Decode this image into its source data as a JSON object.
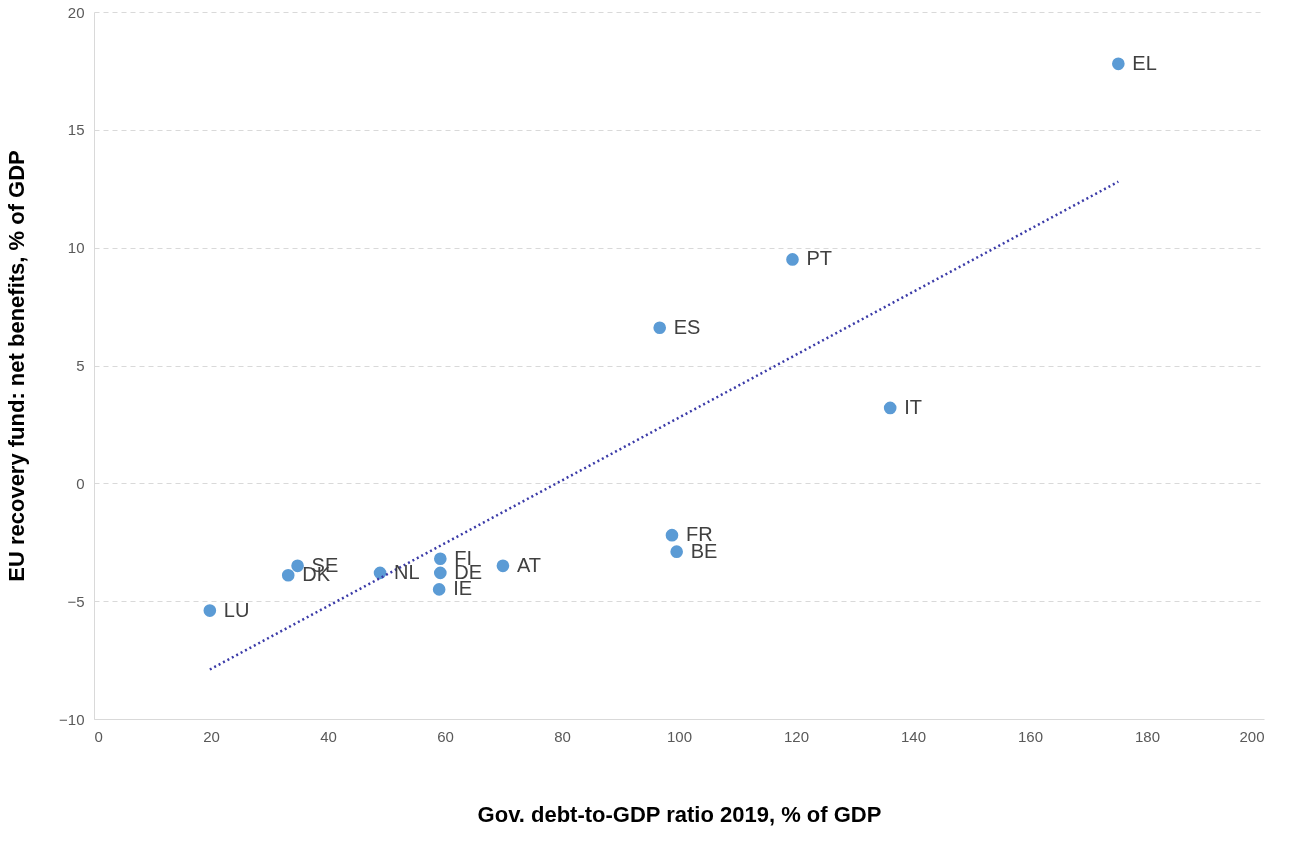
{
  "chart_data": {
    "type": "scatter",
    "xlabel": "Gov. debt-to-GDP ratio 2019, % of GDP",
    "ylabel": "EU recovery fund: net benefits, % of GDP",
    "xlim": [
      0,
      200
    ],
    "xticks": [
      0,
      20,
      40,
      60,
      80,
      100,
      120,
      140,
      160,
      180,
      200
    ],
    "ylim": [
      -10,
      20
    ],
    "yticks": [
      -10,
      -5,
      0,
      5,
      10,
      15,
      20
    ],
    "grid": "y",
    "series": [
      {
        "marker": "circle",
        "color": "#5b9bd5",
        "x": [
          175.1,
          119.4,
          96.7,
          136.1,
          98.8,
          99.6,
          69.9,
          59.2,
          59.2,
          59.0,
          48.9,
          34.8,
          33.2,
          19.8
        ],
        "values": [
          17.8,
          9.5,
          6.6,
          3.2,
          -2.2,
          -2.9,
          -3.5,
          -3.2,
          -3.8,
          -4.5,
          -3.8,
          -3.5,
          -3.9,
          -5.4
        ]
      },
      {
        "type": "line",
        "marker": "none",
        "color": "#3b3ba8",
        "line_style": "dotted",
        "x": [
          19.8,
          175.1
        ],
        "values": [
          -7.9,
          12.8
        ]
      }
    ],
    "annotations": [
      {
        "text": "EL",
        "x": 175.1,
        "y": 17.8
      },
      {
        "text": "PT",
        "x": 119.4,
        "y": 9.5
      },
      {
        "text": "ES",
        "x": 96.7,
        "y": 6.6
      },
      {
        "text": "IT",
        "x": 136.1,
        "y": 3.2
      },
      {
        "text": "FR",
        "x": 98.8,
        "y": -2.2
      },
      {
        "text": "BE",
        "x": 99.6,
        "y": -2.9
      },
      {
        "text": "AT",
        "x": 69.9,
        "y": -3.5
      },
      {
        "text": "FI",
        "x": 59.2,
        "y": -3.2
      },
      {
        "text": "DE",
        "x": 59.2,
        "y": -3.8
      },
      {
        "text": "IE",
        "x": 59.0,
        "y": -4.5
      },
      {
        "text": "NL",
        "x": 48.9,
        "y": -3.8
      },
      {
        "text": "SE",
        "x": 34.8,
        "y": -3.5
      },
      {
        "text": "DK",
        "x": 33.2,
        "y": -3.9
      },
      {
        "text": "LU",
        "x": 19.8,
        "y": -5.4
      }
    ]
  }
}
